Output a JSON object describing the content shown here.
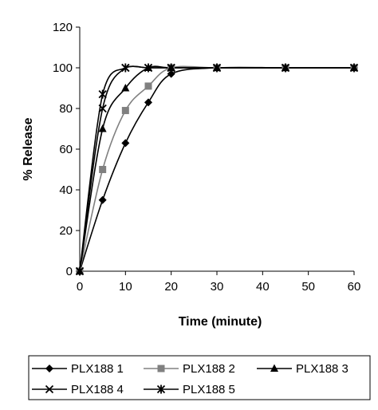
{
  "chart_data": {
    "type": "line",
    "title": "",
    "xlabel": "Time (minute)",
    "ylabel": "% Release",
    "xlim": [
      0,
      60
    ],
    "ylim": [
      0,
      120
    ],
    "x_ticks": [
      0,
      10,
      20,
      30,
      40,
      50,
      60
    ],
    "y_ticks": [
      0,
      20,
      40,
      60,
      80,
      100,
      120
    ],
    "grid": false,
    "legend_position": "bottom",
    "series": [
      {
        "name": "PLX188 1",
        "marker": "diamond",
        "color": "#000000",
        "x": [
          0,
          5,
          10,
          15,
          20,
          30,
          45,
          60
        ],
        "y": [
          0,
          35,
          63,
          83,
          97,
          100,
          100,
          100
        ]
      },
      {
        "name": "PLX188 2",
        "marker": "square",
        "color": "#808080",
        "x": [
          0,
          5,
          10,
          15,
          20,
          30,
          45,
          60
        ],
        "y": [
          0,
          50,
          79,
          91,
          100,
          100,
          100,
          100
        ]
      },
      {
        "name": "PLX188 3",
        "marker": "triangle",
        "color": "#000000",
        "x": [
          0,
          5,
          10,
          15,
          20,
          30,
          45,
          60
        ],
        "y": [
          0,
          70,
          90,
          100,
          100,
          100,
          100,
          100
        ]
      },
      {
        "name": "PLX188 4",
        "marker": "x",
        "color": "#000000",
        "x": [
          0,
          5,
          10,
          15,
          20,
          30,
          45,
          60
        ],
        "y": [
          0,
          80,
          100,
          100,
          100,
          100,
          100,
          100
        ]
      },
      {
        "name": "PLX188 5",
        "marker": "asterisk",
        "color": "#000000",
        "x": [
          0,
          5,
          10,
          15,
          20,
          30,
          45,
          60
        ],
        "y": [
          0,
          87,
          100,
          100,
          100,
          100,
          100,
          100
        ]
      }
    ]
  }
}
